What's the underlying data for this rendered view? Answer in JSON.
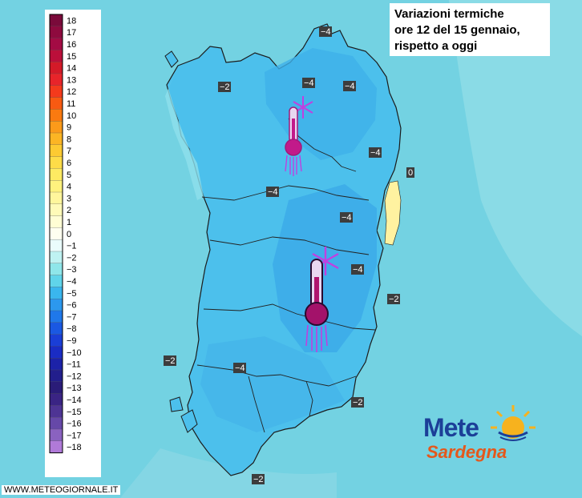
{
  "title": {
    "line1": "Variazioni termiche",
    "line2": "ore 12 del 15 gennaio,",
    "line3": "rispetto a oggi"
  },
  "watermark": "WWW.METEOGIORNALE.IT",
  "logo": {
    "part1": "Mete",
    "part2": "Sardegna"
  },
  "legend": {
    "steps": [
      {
        "label": "18",
        "color": "#7a0a3a"
      },
      {
        "label": "17",
        "color": "#8e0a3e"
      },
      {
        "label": "16",
        "color": "#a30b44"
      },
      {
        "label": "15",
        "color": "#bb0f3a"
      },
      {
        "label": "14",
        "color": "#d41a28"
      },
      {
        "label": "13",
        "color": "#e8242a"
      },
      {
        "label": "12",
        "color": "#f43a1c"
      },
      {
        "label": "11",
        "color": "#f85a12"
      },
      {
        "label": "10",
        "color": "#fa7a10"
      },
      {
        "label": "9",
        "color": "#fb9a1a"
      },
      {
        "label": "8",
        "color": "#fcb524"
      },
      {
        "label": "7",
        "color": "#fdca32"
      },
      {
        "label": "6",
        "color": "#fedc48"
      },
      {
        "label": "5",
        "color": "#feea62"
      },
      {
        "label": "4",
        "color": "#fff27e"
      },
      {
        "label": "3",
        "color": "#fff69c"
      },
      {
        "label": "2",
        "color": "#fffab8"
      },
      {
        "label": "1",
        "color": "#fffdd4"
      },
      {
        "label": "0",
        "color": "#fffff0"
      },
      {
        "label": "−1",
        "color": "#eafcfc"
      },
      {
        "label": "−2",
        "color": "#bff2f2"
      },
      {
        "label": "−3",
        "color": "#8fe6ea"
      },
      {
        "label": "−4",
        "color": "#60d4ea"
      },
      {
        "label": "−5",
        "color": "#3ab6ee"
      },
      {
        "label": "−6",
        "color": "#2c98ee"
      },
      {
        "label": "−7",
        "color": "#1f78ea"
      },
      {
        "label": "−8",
        "color": "#1a58e2"
      },
      {
        "label": "−9",
        "color": "#1a3ed6"
      },
      {
        "label": "−10",
        "color": "#1a2cc4"
      },
      {
        "label": "−11",
        "color": "#1c22a8"
      },
      {
        "label": "−12",
        "color": "#221e8c"
      },
      {
        "label": "−13",
        "color": "#2a1c78"
      },
      {
        "label": "−14",
        "color": "#3a2484"
      },
      {
        "label": "−15",
        "color": "#4e3494"
      },
      {
        "label": "−16",
        "color": "#6648a8"
      },
      {
        "label": "−17",
        "color": "#8a62c0"
      },
      {
        "label": "−18",
        "color": "#b07ad8"
      }
    ]
  },
  "isolines": [
    {
      "text": "−4"
    },
    {
      "text": "−2"
    },
    {
      "text": "−4"
    },
    {
      "text": "−4"
    },
    {
      "text": "−4"
    },
    {
      "text": "0"
    },
    {
      "text": "−4"
    },
    {
      "text": "−4"
    },
    {
      "text": "−4"
    },
    {
      "text": "−2"
    },
    {
      "text": "−2"
    },
    {
      "text": "−4"
    },
    {
      "text": "−2"
    },
    {
      "text": "−2"
    }
  ],
  "icons": [
    {
      "name": "cold-thermometer-icon"
    },
    {
      "name": "cold-thermometer-icon"
    }
  ],
  "colors": {
    "sea": "#73d2e2",
    "land": "#4cc0ec",
    "land_cold": "#3aaeea",
    "warm_coast": "#fff2a0",
    "thermometer": "#c21a8a",
    "snowflake": "#c040e0"
  }
}
